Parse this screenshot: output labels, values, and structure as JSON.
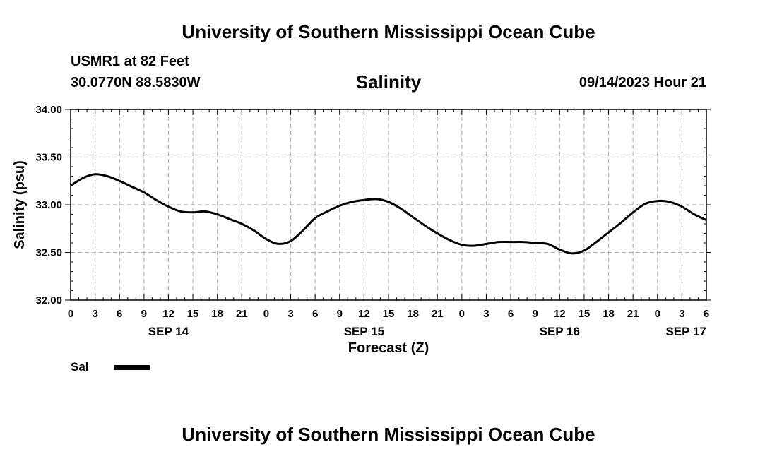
{
  "header": {
    "title_top": "University of Southern Mississippi Ocean Cube",
    "station": "USMR1 at 82 Feet",
    "coords": "30.0770N  88.5830W",
    "chart_title": "Salinity",
    "datetime": "09/14/2023 Hour 21"
  },
  "footer": {
    "title_bottom": "University of Southern Mississippi Ocean Cube"
  },
  "legend": {
    "label": "Sal",
    "color": "#000000"
  },
  "colors": {
    "line": "#000000",
    "grid": "#b4b4b4",
    "background": "#ffffff"
  },
  "chart_data": {
    "type": "line",
    "title": "Salinity",
    "xlabel": "Forecast (Z)",
    "ylabel": "Salinity (psu)",
    "xlim": [
      0,
      78
    ],
    "ylim": [
      32.0,
      34.0
    ],
    "grid": true,
    "legend_position": "bottom-left",
    "y_ticks": [
      32.0,
      32.5,
      33.0,
      33.5,
      34.0
    ],
    "y_tick_labels": [
      "32.00",
      "32.50",
      "33.00",
      "33.50",
      "34.00"
    ],
    "x_ticks": [
      0,
      3,
      6,
      9,
      12,
      15,
      18,
      21,
      24,
      27,
      30,
      33,
      36,
      39,
      42,
      45,
      48,
      51,
      54,
      57,
      60,
      63,
      66,
      69,
      72,
      75,
      78
    ],
    "x_tick_labels": [
      "0",
      "3",
      "6",
      "9",
      "12",
      "15",
      "18",
      "21",
      "0",
      "3",
      "6",
      "9",
      "12",
      "15",
      "18",
      "21",
      "0",
      "3",
      "6",
      "9",
      "12",
      "15",
      "18",
      "21",
      "0",
      "3",
      "6"
    ],
    "date_labels": [
      {
        "x": 12,
        "label": "SEP 14"
      },
      {
        "x": 36,
        "label": "SEP 15"
      },
      {
        "x": 60,
        "label": "SEP 16"
      },
      {
        "x": 75.5,
        "label": "SEP 17"
      }
    ],
    "series": [
      {
        "name": "Sal",
        "x": [
          0,
          1.5,
          3,
          4.5,
          6,
          7.5,
          9,
          10.5,
          12,
          13.5,
          15,
          16.5,
          18,
          19.5,
          21,
          22.5,
          24,
          25.5,
          27,
          28.5,
          30,
          31.5,
          33,
          34.5,
          36,
          37.5,
          39,
          40.5,
          42,
          43.5,
          45,
          46.5,
          48,
          49.5,
          51,
          52.5,
          54,
          55.5,
          57,
          58.5,
          60,
          61.5,
          63,
          64.5,
          66,
          67.5,
          69,
          70.5,
          72,
          73.5,
          75,
          76.5,
          78
        ],
        "values": [
          33.2,
          33.28,
          33.32,
          33.3,
          33.25,
          33.19,
          33.13,
          33.05,
          32.98,
          32.93,
          32.92,
          32.93,
          32.9,
          32.85,
          32.8,
          32.73,
          32.64,
          32.59,
          32.62,
          32.73,
          32.86,
          32.93,
          32.99,
          33.03,
          33.05,
          33.06,
          33.03,
          32.96,
          32.87,
          32.78,
          32.7,
          32.63,
          32.58,
          32.57,
          32.59,
          32.61,
          32.61,
          32.61,
          32.6,
          32.59,
          32.53,
          32.49,
          32.52,
          32.61,
          32.71,
          32.81,
          32.92,
          33.01,
          33.04,
          33.03,
          32.98,
          32.9,
          32.84
        ]
      }
    ]
  }
}
